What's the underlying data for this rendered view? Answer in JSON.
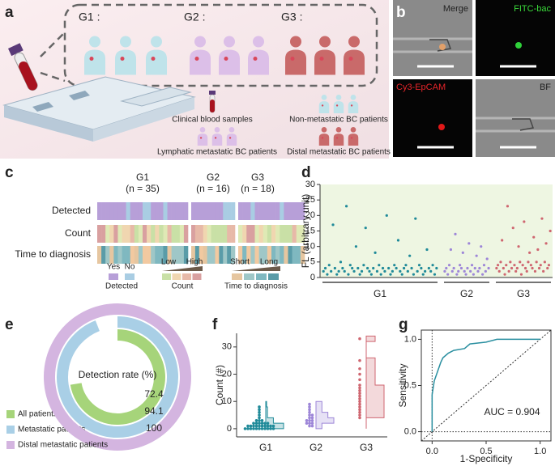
{
  "panel_labels": [
    "a",
    "b",
    "c",
    "d",
    "e",
    "f",
    "g"
  ],
  "panel_a": {
    "groups": [
      "G1 :",
      "G2 :",
      "G3 :"
    ],
    "legend": [
      "Clinical blood samples",
      "Non-metastatic BC patients",
      "Lymphatic metastatic BC patients",
      "Distal metastatic BC patients"
    ]
  },
  "panel_b": {
    "images": [
      "Merge",
      "FITC-bac",
      "Cy3-EpCAM",
      "BF"
    ]
  },
  "panel_c": {
    "groups": [
      {
        "name": "G1",
        "n": "(n = 35)"
      },
      {
        "name": "G2",
        "n": "(n = 16)"
      },
      {
        "name": "G3",
        "n": "(n = 18)"
      }
    ],
    "rows": [
      "Detected",
      "Count",
      "Time to diagnosis"
    ],
    "legend": {
      "detected": [
        "Yes",
        "No"
      ],
      "detected_title": "Detected",
      "count": [
        "Low",
        "High"
      ],
      "count_title": "Count",
      "time": [
        "Short",
        "Long"
      ],
      "time_title": "Time to diagnosis"
    }
  },
  "chart_data": [
    {
      "type": "scatter",
      "y_label": "FL (arbitrary unit)",
      "ylim": [
        0,
        30
      ],
      "yticks": [
        0,
        5,
        10,
        15,
        20,
        25,
        30
      ],
      "groups": [
        {
          "label": "G1",
          "color": "#1f8a99",
          "values": [
            2,
            3,
            1,
            4,
            2,
            17,
            3,
            1,
            2,
            5,
            3,
            2,
            23,
            1,
            4,
            3,
            2,
            10,
            3,
            1,
            2,
            4,
            16,
            3,
            2,
            1,
            3,
            8,
            2,
            4,
            1,
            3,
            2,
            20,
            3,
            1,
            2,
            4,
            3,
            12,
            2,
            1,
            3,
            4,
            2,
            7,
            3,
            1,
            19,
            2,
            4,
            3,
            1,
            2,
            9,
            3,
            2,
            4,
            1,
            3
          ]
        },
        {
          "label": "G2",
          "color": "#9d86d8",
          "values": [
            2,
            3,
            1,
            4,
            9,
            2,
            3,
            14,
            1,
            2,
            4,
            3,
            8,
            2,
            1,
            3,
            11,
            2,
            4,
            1,
            3,
            7,
            2,
            3,
            10,
            1,
            4,
            2,
            6,
            3
          ]
        },
        {
          "label": "G3",
          "color": "#cf6670",
          "values": [
            3,
            4,
            2,
            5,
            12,
            3,
            1,
            4,
            23,
            2,
            5,
            3,
            16,
            4,
            2,
            3,
            10,
            5,
            1,
            4,
            18,
            3,
            2,
            5,
            8,
            4,
            3,
            13,
            2,
            5,
            9,
            3,
            4,
            19,
            2,
            5,
            11,
            3,
            4,
            15
          ]
        }
      ]
    },
    {
      "type": "donut",
      "center_label": "Detection rate (%)",
      "categories": [
        "All patients",
        "Metastatic patients",
        "Distal metastatic patients"
      ],
      "values": [
        72.4,
        94.1,
        100
      ],
      "colors": [
        "#a6d47a",
        "#a9cfe6",
        "#d4b5e0"
      ]
    },
    {
      "type": "strip",
      "y_label": "Count (#)",
      "ylim": [
        -3,
        35
      ],
      "yticks": [
        0,
        10,
        20,
        30
      ],
      "groups": [
        {
          "label": "G1",
          "color": "#1f8a99",
          "values": [
            0,
            0,
            1,
            0,
            2,
            1,
            0,
            3,
            1,
            0,
            5,
            2,
            1,
            0,
            4,
            1,
            0,
            2,
            6,
            1,
            0,
            3,
            1,
            2,
            0,
            1,
            7,
            0,
            2,
            1,
            3,
            0,
            1,
            2,
            8
          ]
        },
        {
          "label": "G2",
          "color": "#9d86d8",
          "values": [
            2,
            4,
            1,
            3,
            6,
            2,
            5,
            3,
            8,
            1,
            4,
            2,
            3,
            7,
            5,
            9
          ]
        },
        {
          "label": "G3",
          "color": "#cf6670",
          "values": [
            8,
            12,
            5,
            15,
            10,
            22,
            7,
            18,
            11,
            9,
            25,
            6,
            13,
            33,
            4,
            16,
            20,
            14
          ]
        }
      ]
    },
    {
      "type": "line",
      "x_label": "1-Specificity",
      "y_label": "Sensitivity",
      "annotation": "AUC = 0.904",
      "color": "#2a8fa0",
      "x": [
        0,
        0,
        0.02,
        0.05,
        0.08,
        0.1,
        0.15,
        0.2,
        0.3,
        0.35,
        0.5,
        0.6,
        1
      ],
      "y": [
        0,
        0.4,
        0.55,
        0.65,
        0.75,
        0.8,
        0.85,
        0.88,
        0.9,
        0.95,
        0.97,
        1,
        1
      ],
      "xlim": [
        -0.1,
        1.1
      ],
      "ylim": [
        -0.1,
        1.1
      ],
      "xticks": [
        {
          "value": 0,
          "label": "0.0"
        },
        {
          "value": 0.5,
          "label": "0.5"
        },
        {
          "value": 1,
          "label": "1.0"
        }
      ],
      "yticks": [
        {
          "value": 0,
          "label": "0.0"
        },
        {
          "value": 0.5,
          "label": "0.5"
        },
        {
          "value": 1,
          "label": "1.0"
        }
      ]
    }
  ]
}
